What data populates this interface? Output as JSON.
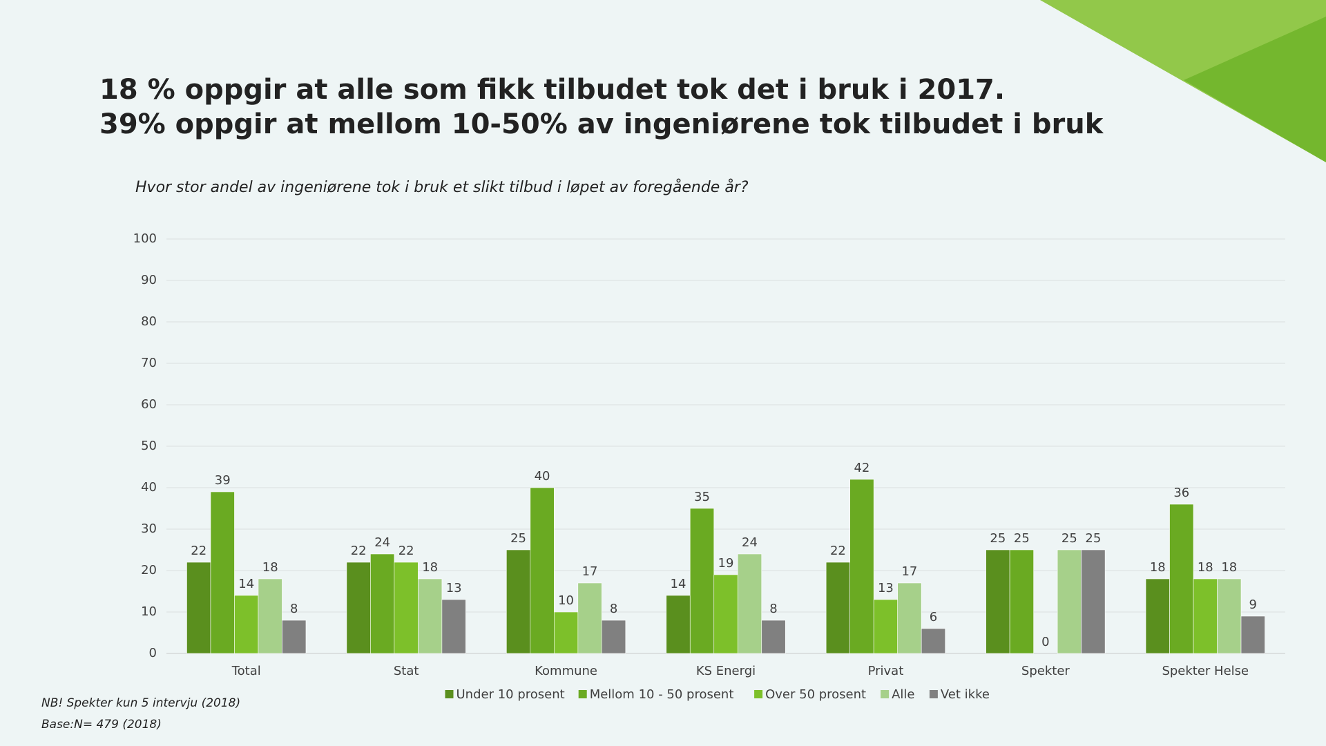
{
  "chart_data": {
    "type": "bar",
    "title": [
      "18 % oppgir at alle som fikk tilbudet tok det i bruk i 2017.",
      "39% oppgir at mellom 10-50% av ingeniørene tok tilbudet i bruk"
    ],
    "subtitle": "Hvor stor andel av ingeniørene tok i bruk et slikt tilbud i løpet av foregående år?",
    "categories": [
      "Total",
      "Stat",
      "Kommune",
      "KS Energi",
      "Privat",
      "Spekter",
      "Spekter Helse"
    ],
    "series": [
      {
        "name": "Under 10 prosent",
        "color": "#5a8f1e",
        "values": [
          22,
          22,
          25,
          14,
          22,
          25,
          18
        ]
      },
      {
        "name": "Mellom 10 - 50 prosent",
        "color": "#6aaa22",
        "values": [
          39,
          24,
          40,
          35,
          42,
          25,
          36
        ]
      },
      {
        "name": "Over 50 prosent",
        "color": "#7dc02a",
        "values": [
          14,
          22,
          10,
          19,
          13,
          0,
          18
        ]
      },
      {
        "name": "Alle",
        "color": "#a6d08a",
        "values": [
          18,
          18,
          17,
          24,
          17,
          25,
          18
        ]
      },
      {
        "name": "Vet ikke",
        "color": "#808080",
        "values": [
          8,
          13,
          8,
          8,
          6,
          25,
          9
        ]
      }
    ],
    "ylim": [
      0,
      100
    ],
    "yticks": [
      0,
      10,
      20,
      30,
      40,
      50,
      60,
      70,
      80,
      90,
      100
    ],
    "grid": true,
    "legend": "bottom",
    "notes": [
      "NB! Spekter kun 5 intervju (2018)",
      "Base:N= 479 (2018)"
    ]
  }
}
